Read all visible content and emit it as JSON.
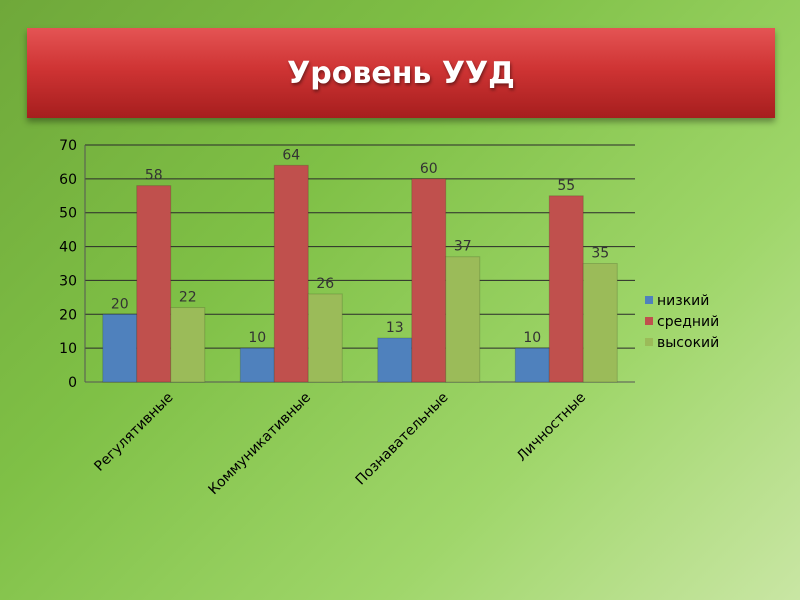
{
  "slide": {
    "title": "Уровень УУД"
  },
  "chart_data": {
    "type": "bar",
    "title": "",
    "xlabel": "",
    "ylabel": "",
    "ylim": [
      0,
      70
    ],
    "yticks": [
      0,
      10,
      20,
      30,
      40,
      50,
      60,
      70
    ],
    "grid": true,
    "legend_position": "right",
    "categories": [
      "Регулятивные",
      "Коммуникативные",
      "Познавательные",
      "Личностные"
    ],
    "series": [
      {
        "name": "низкий",
        "color": "#4f81bd",
        "values": [
          20,
          10,
          13,
          10
        ]
      },
      {
        "name": "средний",
        "color": "#c0504d",
        "values": [
          58,
          64,
          60,
          55
        ]
      },
      {
        "name": "высокий",
        "color": "#9bbb59",
        "values": [
          22,
          26,
          37,
          35
        ]
      }
    ]
  }
}
